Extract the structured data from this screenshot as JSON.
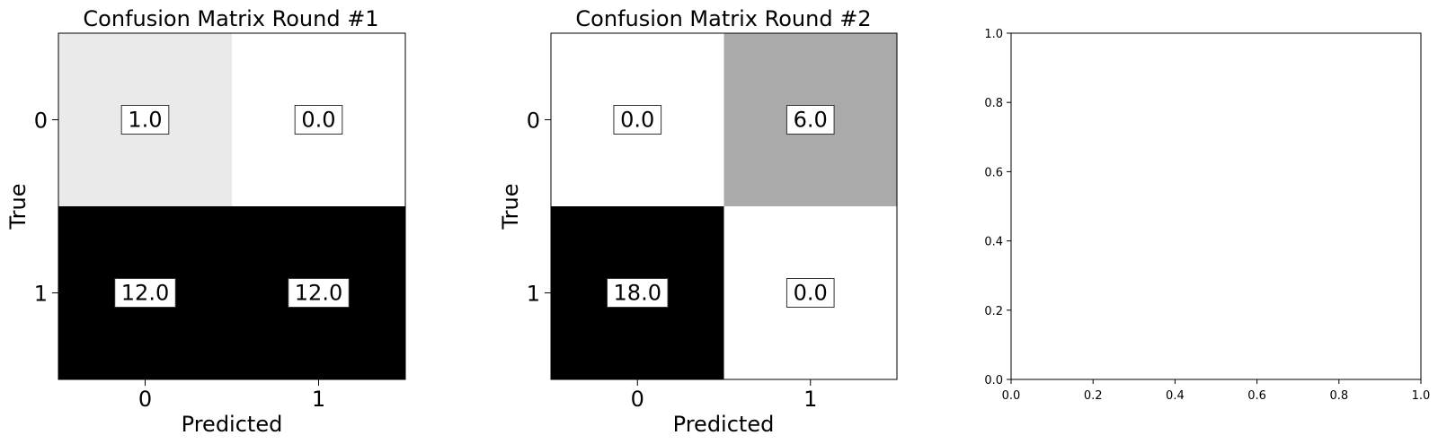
{
  "chart_data": [
    {
      "type": "heatmap",
      "title": "Confusion Matrix Round #1",
      "xlabel": "Predicted",
      "ylabel": "True",
      "x_categories": [
        "0",
        "1"
      ],
      "y_categories": [
        "0",
        "1"
      ],
      "values": [
        [
          1.0,
          0.0
        ],
        [
          12.0,
          12.0
        ]
      ],
      "cell_labels": [
        [
          "1.0",
          "0.0"
        ],
        [
          "12.0",
          "12.0"
        ]
      ],
      "colormap": "grayscale (white = 0, black = max)",
      "grid": false
    },
    {
      "type": "heatmap",
      "title": "Confusion Matrix Round #2",
      "xlabel": "Predicted",
      "ylabel": "True",
      "x_categories": [
        "0",
        "1"
      ],
      "y_categories": [
        "0",
        "1"
      ],
      "values": [
        [
          0.0,
          6.0
        ],
        [
          18.0,
          0.0
        ]
      ],
      "cell_labels": [
        [
          "0.0",
          "6.0"
        ],
        [
          "18.0",
          "0.0"
        ]
      ],
      "colormap": "grayscale (white = 0, black = max)",
      "grid": false
    },
    {
      "type": "scatter",
      "title": "",
      "xlabel": "",
      "ylabel": "",
      "xlim": [
        0.0,
        1.0
      ],
      "ylim": [
        0.0,
        1.0
      ],
      "x_ticks": [
        "0.0",
        "0.2",
        "0.4",
        "0.6",
        "0.8",
        "1.0"
      ],
      "y_ticks": [
        "0.0",
        "0.2",
        "0.4",
        "0.6",
        "0.8",
        "1.0"
      ],
      "series": [],
      "grid": false
    }
  ]
}
